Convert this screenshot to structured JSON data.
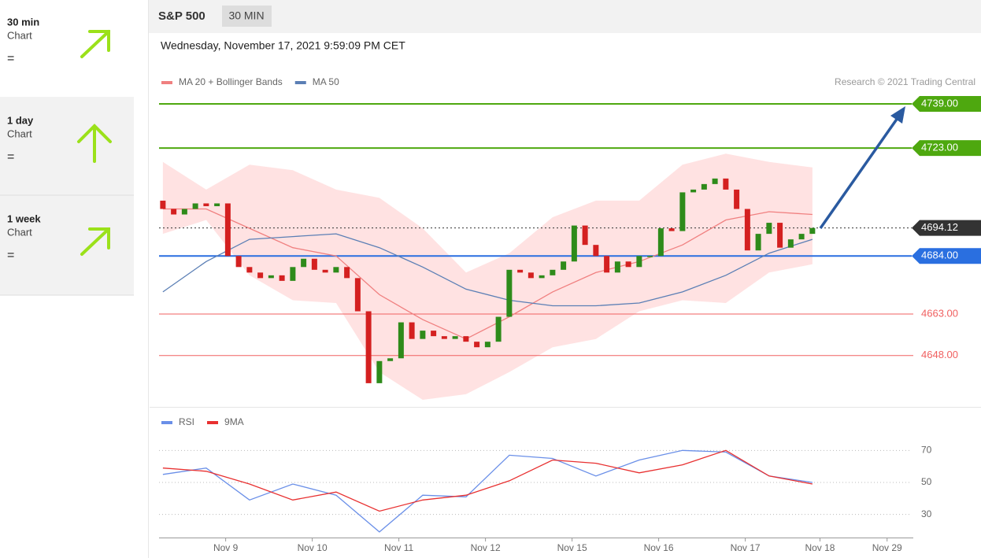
{
  "sidebar": {
    "items": [
      {
        "title": "30 min",
        "sub": "Chart",
        "sign": "="
      },
      {
        "title": "1 day",
        "sub": "Chart",
        "sign": "="
      },
      {
        "title": "1 week",
        "sub": "Chart",
        "sign": "="
      }
    ]
  },
  "header": {
    "symbol": "S&P 500",
    "interval": "30 MIN",
    "date": "Wednesday, November 17, 2021 9:59:09 PM CET",
    "credit": "Research © 2021 Trading Central"
  },
  "chart_data": [
    {
      "type": "candlestick",
      "open": [
        4704,
        4701,
        4699,
        4701,
        4703,
        4702,
        4703,
        4684,
        4680,
        4678,
        4676,
        4677,
        4675,
        4680,
        4683,
        4679,
        4678,
        4680,
        4676,
        4664,
        4638,
        4646,
        4647,
        4660,
        4654,
        4657,
        4655,
        4654,
        4655,
        4653,
        4651,
        4653,
        4662,
        4679,
        4678,
        4676,
        4677,
        4679,
        4682,
        4695,
        4688,
        4684,
        4678,
        4682,
        4680,
        4684,
        4684,
        4694,
        4693,
        4707,
        4708,
        4710,
        4712,
        4708,
        4701,
        4686,
        4692,
        4696,
        4687,
        4690,
        4692
      ],
      "close": [
        4701,
        4699,
        4701,
        4703,
        4702,
        4703,
        4684,
        4680,
        4678,
        4676,
        4677,
        4675,
        4680,
        4683,
        4679,
        4678,
        4680,
        4676,
        4664,
        4638,
        4646,
        4647,
        4660,
        4654,
        4657,
        4655,
        4654,
        4655,
        4653,
        4651,
        4653,
        4662,
        4679,
        4678,
        4676,
        4677,
        4679,
        4682,
        4695,
        4688,
        4684,
        4678,
        4682,
        4680,
        4684,
        4684,
        4694,
        4693,
        4707,
        4708,
        4710,
        4712,
        4708,
        4701,
        4686,
        4692,
        4696,
        4687,
        4690,
        4692,
        4694.12
      ],
      "up_color": "#2e8b1a",
      "down_color": "#d42020",
      "bands": {
        "color": "#ffd6d6",
        "x": [
          0,
          4,
          8,
          12,
          16,
          20,
          24,
          28,
          32,
          36,
          40,
          44,
          48,
          52,
          56,
          60
        ],
        "upper": [
          4718,
          4708,
          4717,
          4715,
          4708,
          4705,
          4694,
          4678,
          4685,
          4698,
          4704,
          4704,
          4717,
          4721,
          4718,
          4716
        ],
        "lower": [
          4692,
          4697,
          4677,
          4668,
          4667,
          4642,
          4632,
          4634,
          4642,
          4651,
          4654,
          4664,
          4668,
          4667,
          4678,
          4681
        ]
      },
      "series": [
        {
          "name": "MA 20 + Bollinger Bands",
          "color": "#f08080",
          "x": [
            0,
            4,
            8,
            12,
            16,
            20,
            24,
            28,
            32,
            36,
            40,
            44,
            48,
            52,
            56,
            60
          ],
          "values": [
            4701,
            4701,
            4694,
            4687,
            4684,
            4670,
            4661,
            4654,
            4662,
            4671,
            4678,
            4682,
            4688,
            4697,
            4700,
            4699
          ]
        },
        {
          "name": "MA 50",
          "color": "#5b7fb5",
          "x": [
            0,
            4,
            8,
            12,
            16,
            20,
            24,
            28,
            32,
            36,
            40,
            44,
            48,
            52,
            56,
            60
          ],
          "values": [
            4671,
            4682,
            4690,
            4691,
            4692,
            4687,
            4680,
            4672,
            4668,
            4666,
            4666,
            4667,
            4671,
            4677,
            4685,
            4690
          ]
        }
      ],
      "levels": [
        {
          "value": 4739,
          "label": "4739.00",
          "color": "#4ea80f",
          "tag": true
        },
        {
          "value": 4723,
          "label": "4723.00",
          "color": "#4ea80f",
          "tag": true
        },
        {
          "value": 4694.12,
          "label": "4694.12",
          "color": "#333333",
          "tag": true,
          "dotted": true
        },
        {
          "value": 4684,
          "label": "4684.00",
          "color": "#2a6fe0",
          "tag": true
        },
        {
          "value": 4663,
          "label": "4663.00",
          "color": "#f06060",
          "tag": false
        },
        {
          "value": 4648,
          "label": "4648.00",
          "color": "#f06060",
          "tag": false
        }
      ],
      "xlim": [
        -0.5,
        69
      ],
      "ylim": [
        4630,
        4742.4
      ],
      "xticks": [
        {
          "value": 5.8,
          "label": "Nov 9"
        },
        {
          "value": 13.8,
          "label": "Nov 10"
        },
        {
          "value": 21.8,
          "label": "Nov 11"
        },
        {
          "value": 29.8,
          "label": "Nov 12"
        },
        {
          "value": 37.8,
          "label": "Nov 15"
        },
        {
          "value": 45.8,
          "label": "Nov 16"
        },
        {
          "value": 53.8,
          "label": "Nov 17"
        },
        {
          "value": 60.7,
          "label": "Nov 18"
        },
        {
          "value": 66.9,
          "label": "Nov 29"
        }
      ]
    },
    {
      "type": "line",
      "series": [
        {
          "name": "RSI",
          "color": "#6a8fe8",
          "x": [
            0,
            4,
            8,
            12,
            16,
            20,
            24,
            28,
            32,
            36,
            40,
            44,
            48,
            52,
            56,
            60
          ],
          "values": [
            55,
            59,
            39,
            49,
            42,
            19,
            42,
            41,
            67,
            65,
            54,
            64,
            70,
            69,
            54,
            50
          ]
        },
        {
          "name": "9MA",
          "color": "#e83030",
          "x": [
            0,
            4,
            8,
            12,
            16,
            20,
            24,
            28,
            32,
            36,
            40,
            44,
            48,
            52,
            56,
            60
          ],
          "values": [
            59,
            57,
            49,
            39,
            44,
            32,
            39,
            42,
            51,
            64,
            62,
            56,
            61,
            70,
            54,
            49
          ]
        }
      ],
      "xlim": [
        -0.5,
        69
      ],
      "ylim": [
        17,
        81
      ],
      "yticks": [
        30,
        50,
        70
      ],
      "grid": true
    }
  ]
}
